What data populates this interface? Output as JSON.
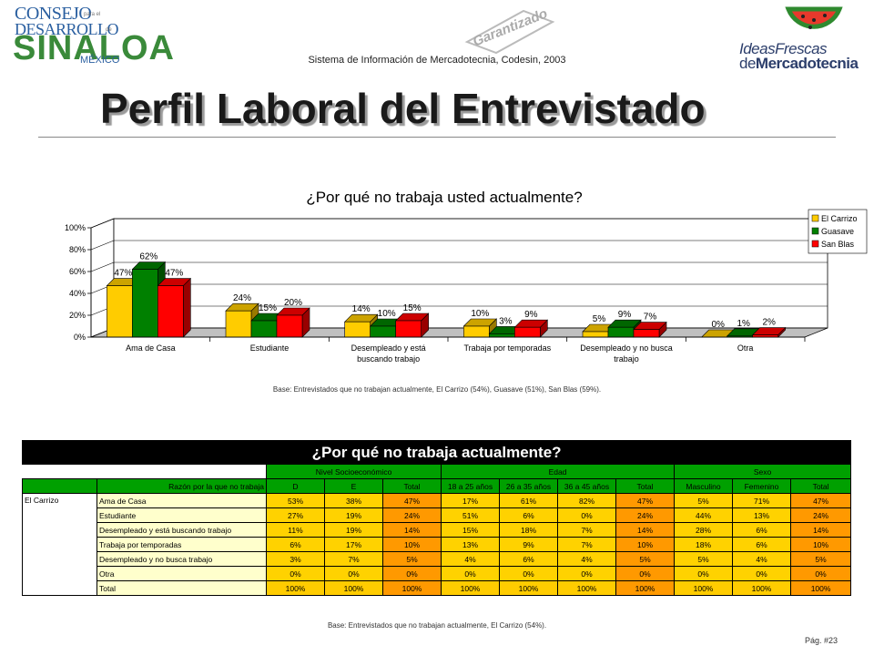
{
  "header": {
    "logo_left": {
      "line1": "CONSEJO",
      "line2": "DESARROLLO",
      "line3": "SINALOA",
      "line4": "MÉXICO",
      "small1": "para el",
      "small2": "de"
    },
    "seal_text": "Garantizado",
    "subtitle": "Sistema de Información de Mercadotecnia, Codesin, 2003",
    "logo_right": {
      "w1": "Ideas",
      "w2": "Frescas",
      "w3": "de",
      "w4": "Mercadotecnia"
    },
    "page_title": "Perfil Laboral del Entrevistado"
  },
  "chart_data": {
    "type": "bar",
    "title": "¿Por qué no trabaja usted actualmente?",
    "categories": [
      [
        "Ama de Casa"
      ],
      [
        "Estudiante"
      ],
      [
        "Desempleado y está",
        "buscando trabajo"
      ],
      [
        "Trabaja por temporadas"
      ],
      [
        "Desempleado y no busca",
        "trabajo"
      ],
      [
        "Otra"
      ]
    ],
    "series": [
      {
        "name": "El Carrizo",
        "color": "#ffcc00",
        "values": [
          47,
          24,
          14,
          10,
          5,
          0
        ]
      },
      {
        "name": "Guasave",
        "color": "#008000",
        "values": [
          62,
          15,
          10,
          3,
          9,
          1
        ]
      },
      {
        "name": "San Blas",
        "color": "#ff0000",
        "values": [
          47,
          20,
          15,
          9,
          7,
          2
        ]
      }
    ],
    "yticks": [
      "0%",
      "20%",
      "40%",
      "60%",
      "80%",
      "100%"
    ],
    "ylim": [
      0,
      100
    ],
    "legend_position": "right",
    "base_note": "Base: Entrevistados que no trabajan actualmente, El Carrizo (54%), Guasave (51%), San Blas (59%)."
  },
  "table": {
    "title": "¿Por qué no trabaja actualmente?",
    "groups": [
      "Nivel Socioeconómico",
      "Edad",
      "Sexo"
    ],
    "row_header": "Razón por la que no trabaja",
    "columns": [
      "D",
      "E",
      "Total",
      "18 a 25 años",
      "26 a 35 años",
      "36 a 45 años",
      "Total",
      "Masculino",
      "Femenino",
      "Total"
    ],
    "row_group": "El Carrizo",
    "rows": [
      {
        "label": "Ama de Casa",
        "values": [
          "53%",
          "38%",
          "47%",
          "17%",
          "61%",
          "82%",
          "47%",
          "5%",
          "71%",
          "47%"
        ]
      },
      {
        "label": "Estudiante",
        "values": [
          "27%",
          "19%",
          "24%",
          "51%",
          "6%",
          "0%",
          "24%",
          "44%",
          "13%",
          "24%"
        ]
      },
      {
        "label": "Desempleado y está buscando trabajo",
        "values": [
          "11%",
          "19%",
          "14%",
          "15%",
          "18%",
          "7%",
          "14%",
          "28%",
          "6%",
          "14%"
        ]
      },
      {
        "label": "Trabaja por temporadas",
        "values": [
          "6%",
          "17%",
          "10%",
          "13%",
          "9%",
          "7%",
          "10%",
          "18%",
          "6%",
          "10%"
        ]
      },
      {
        "label": "Desempleado y no busca trabajo",
        "values": [
          "3%",
          "7%",
          "5%",
          "4%",
          "6%",
          "4%",
          "5%",
          "5%",
          "4%",
          "5%"
        ]
      },
      {
        "label": "Otra",
        "values": [
          "0%",
          "0%",
          "0%",
          "0%",
          "0%",
          "0%",
          "0%",
          "0%",
          "0%",
          "0%"
        ]
      },
      {
        "label": "Total",
        "values": [
          "100%",
          "100%",
          "100%",
          "100%",
          "100%",
          "100%",
          "100%",
          "100%",
          "100%",
          "100%"
        ]
      }
    ],
    "base_note": "Base: Entrevistados que no trabajan actualmente, El Carrizo (54%)."
  },
  "footer": {
    "page": "Pág. #23"
  }
}
